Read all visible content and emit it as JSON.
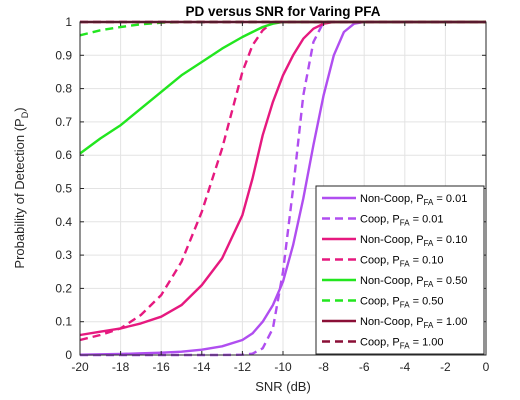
{
  "chart_data": {
    "type": "line",
    "title": "PD versus SNR for Varing PFA",
    "xlabel": "SNR (dB)",
    "ylabel": "Probability of Detection (P",
    "ylabel_sub": "D",
    "ylabel_end": ")",
    "xlim": [
      -20,
      0
    ],
    "ylim": [
      0,
      1
    ],
    "x_ticks": [
      "-20",
      "-18",
      "-16",
      "-14",
      "-12",
      "-10",
      "-8",
      "-6",
      "-4",
      "-2",
      "0"
    ],
    "y_ticks": [
      "0",
      "0.1",
      "0.2",
      "0.3",
      "0.4",
      "0.5",
      "0.6",
      "0.7",
      "0.8",
      "0.9",
      "1"
    ],
    "grid": true,
    "legend_position": "bottom-right",
    "x": [
      -20,
      -19,
      -18,
      -17,
      -16,
      -15,
      -14,
      -13,
      -12,
      -11.5,
      -11,
      -10.5,
      -10,
      -9.5,
      -9,
      -8.5,
      -8,
      -7.5,
      -7,
      -6.5,
      -6,
      -5,
      -4,
      -3,
      -2,
      -1,
      0
    ],
    "series": [
      {
        "name_main": "Non-Coop, P",
        "name_sub": "FA",
        "name_end": " = 0.01",
        "color": "#b04ef0",
        "dash": "solid",
        "values": [
          0.001,
          0.002,
          0.003,
          0.005,
          0.007,
          0.01,
          0.016,
          0.026,
          0.045,
          0.065,
          0.1,
          0.15,
          0.22,
          0.33,
          0.47,
          0.63,
          0.78,
          0.9,
          0.97,
          0.995,
          1,
          1,
          1,
          1,
          1,
          1,
          1
        ]
      },
      {
        "name_main": "Coop, P",
        "name_sub": "FA",
        "name_end": " = 0.01",
        "color": "#b04ef0",
        "dash": "dashed",
        "values": [
          0,
          0,
          0,
          0,
          0,
          0,
          0,
          0,
          0.001,
          0.004,
          0.02,
          0.08,
          0.25,
          0.5,
          0.78,
          0.94,
          1,
          1,
          1,
          1,
          1,
          1,
          1,
          1,
          1,
          1,
          1
        ]
      },
      {
        "name_main": "Non-Coop, P",
        "name_sub": "FA",
        "name_end": " = 0.10",
        "color": "#e6197f",
        "dash": "solid",
        "values": [
          0.06,
          0.07,
          0.08,
          0.095,
          0.115,
          0.15,
          0.21,
          0.29,
          0.42,
          0.53,
          0.66,
          0.76,
          0.84,
          0.9,
          0.95,
          0.98,
          0.995,
          1,
          1,
          1,
          1,
          1,
          1,
          1,
          1,
          1,
          1
        ]
      },
      {
        "name_main": "Coop, P",
        "name_sub": "FA",
        "name_end": " = 0.10",
        "color": "#e6197f",
        "dash": "dashed",
        "values": [
          0.045,
          0.06,
          0.08,
          0.12,
          0.18,
          0.28,
          0.43,
          0.62,
          0.85,
          0.93,
          0.975,
          1,
          1,
          1,
          1,
          1,
          1,
          1,
          1,
          1,
          1,
          1,
          1,
          1,
          1,
          1,
          1
        ]
      },
      {
        "name_main": "Non-Coop, P",
        "name_sub": "FA",
        "name_end": " = 0.50",
        "color": "#22e61f",
        "dash": "solid",
        "values": [
          0.605,
          0.65,
          0.69,
          0.74,
          0.79,
          0.84,
          0.88,
          0.92,
          0.955,
          0.97,
          0.985,
          0.995,
          1,
          1,
          1,
          1,
          1,
          1,
          1,
          1,
          1,
          1,
          1,
          1,
          1,
          1,
          1
        ]
      },
      {
        "name_main": "Coop, P",
        "name_sub": "FA",
        "name_end": " = 0.50",
        "color": "#22e61f",
        "dash": "dashed",
        "values": [
          0.96,
          0.975,
          0.985,
          0.993,
          0.998,
          1,
          1,
          1,
          1,
          1,
          1,
          1,
          1,
          1,
          1,
          1,
          1,
          1,
          1,
          1,
          1,
          1,
          1,
          1,
          1,
          1,
          1
        ]
      },
      {
        "name_main": "Non-Coop, P",
        "name_sub": "FA",
        "name_end": " = 1.00",
        "color": "#8a0f36",
        "dash": "solid",
        "values": [
          1,
          1,
          1,
          1,
          1,
          1,
          1,
          1,
          1,
          1,
          1,
          1,
          1,
          1,
          1,
          1,
          1,
          1,
          1,
          1,
          1,
          1,
          1,
          1,
          1,
          1,
          1
        ]
      },
      {
        "name_main": "Coop, P",
        "name_sub": "FA",
        "name_end": " = 1.00",
        "color": "#8a0f36",
        "dash": "dashed",
        "values": [
          1,
          1,
          1,
          1,
          1,
          1,
          1,
          1,
          1,
          1,
          1,
          1,
          1,
          1,
          1,
          1,
          1,
          1,
          1,
          1,
          1,
          1,
          1,
          1,
          1,
          1,
          1
        ]
      }
    ]
  }
}
